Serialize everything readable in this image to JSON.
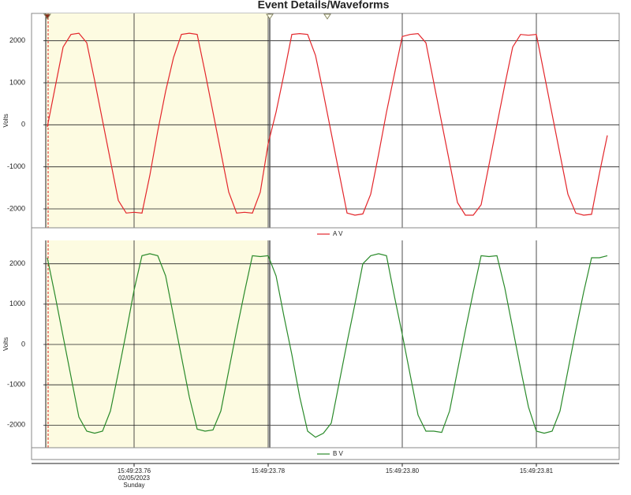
{
  "chart_data": {
    "type": "line",
    "title": "Event Details/Waveforms",
    "x": [
      0.751,
      0.752,
      0.753,
      0.754,
      0.755,
      0.756,
      0.757,
      0.758,
      0.759,
      0.76,
      0.761,
      0.762,
      0.763,
      0.764,
      0.765,
      0.766,
      0.767,
      0.768,
      0.769,
      0.77,
      0.771,
      0.772,
      0.773,
      0.774,
      0.775,
      0.776,
      0.777,
      0.778,
      0.779,
      0.78,
      0.781,
      0.782,
      0.783,
      0.784,
      0.785,
      0.786,
      0.787,
      0.788,
      0.789,
      0.79,
      0.791,
      0.792,
      0.793,
      0.794,
      0.795,
      0.796,
      0.797,
      0.798,
      0.799,
      0.8,
      0.801,
      0.802,
      0.803,
      0.804,
      0.805,
      0.806,
      0.807,
      0.808,
      0.809,
      0.81,
      0.811,
      0.812,
      0.813,
      0.814,
      0.815,
      0.816,
      0.817,
      0.818,
      0.819,
      0.82,
      0.821,
      0.822,
      0.823
    ],
    "xlim": [
      0.7505,
      0.8235
    ],
    "xticks": [
      {
        "value": 0.762,
        "label": "15:49:23.76"
      },
      {
        "value": 0.779,
        "label": "15:49:23.78"
      },
      {
        "value": 0.796,
        "label": "15:49:23.80"
      },
      {
        "value": 0.813,
        "label": "15:49:23.81"
      }
    ],
    "xtick_date": "02/05/2023",
    "xtick_day": "Sunday",
    "grid": true,
    "panels": [
      {
        "ylabel": "Volts",
        "ylim": [
          -2450,
          2650
        ],
        "yticks": [
          -2000,
          -1000,
          0,
          1000,
          2000
        ],
        "series": [
          {
            "name": "A V",
            "color": "#e3262b",
            "values": [
              -50,
              900,
              1850,
              2150,
              2180,
              1950,
              1050,
              100,
              -850,
              -1800,
              -2100,
              -2080,
              -2100,
              -1200,
              -150,
              800,
              1600,
              2150,
              2180,
              2150,
              1250,
              300,
              -650,
              -1600,
              -2100,
              -2080,
              -2100,
              -1600,
              -450,
              300,
              1200,
              2150,
              2170,
              2150,
              1650,
              750,
              -200,
              -1150,
              -2100,
              -2150,
              -2120,
              -1650,
              -700,
              300,
              1200,
              2100,
              2150,
              2170,
              1950,
              1000,
              50,
              -900,
              -1850,
              -2150,
              -2150,
              -1900,
              -950,
              0,
              950,
              1850,
              2150,
              2130,
              2150,
              1200,
              250,
              -700,
              -1650,
              -2100,
              -2150,
              -2130,
              -1150,
              -250,
              null
            ]
          }
        ]
      },
      {
        "ylabel": "Volts",
        "ylim": [
          -2560,
          2580
        ],
        "yticks": [
          -2000,
          -1000,
          0,
          1000,
          2000
        ],
        "series": [
          {
            "name": "B V",
            "color": "#2a8a2a",
            "values": [
              2150,
              1200,
              200,
              -800,
              -1800,
              -2150,
              -2200,
              -2150,
              -1650,
              -700,
              300,
              1350,
              2200,
              2250,
              2200,
              1700,
              700,
              -300,
              -1300,
              -2100,
              -2150,
              -2120,
              -1650,
              -650,
              350,
              1300,
              2200,
              2180,
              2200,
              1700,
              700,
              -250,
              -1300,
              -2150,
              -2300,
              -2200,
              -1950,
              -950,
              50,
              1000,
              2000,
              2200,
              2250,
              2200,
              1200,
              250,
              -750,
              -1750,
              -2150,
              -2150,
              -2180,
              -1650,
              -650,
              350,
              1300,
              2200,
              2180,
              2200,
              1400,
              400,
              -600,
              -1550,
              -2150,
              -2200,
              -2150,
              -1650,
              -650,
              350,
              1300,
              2150,
              2150,
              2200,
              null
            ]
          }
        ]
      }
    ]
  }
}
